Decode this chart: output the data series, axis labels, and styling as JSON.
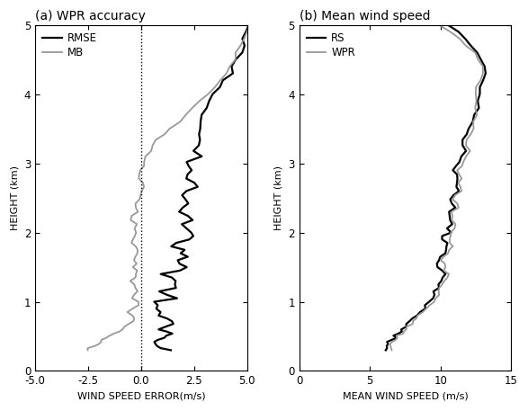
{
  "title_a": "(a) WPR accuracy",
  "title_b": "(b) Mean wind speed",
  "xlabel_a": "WIND SPEED ERROR(m/s)",
  "xlabel_b": "MEAN WIND SPEED (m/s)",
  "ylabel": "HEIGHT (km)",
  "xlim_a": [
    -5.0,
    5.0
  ],
  "xlim_b": [
    0,
    15
  ],
  "ylim": [
    0,
    5
  ],
  "xticks_a": [
    -5.0,
    -2.5,
    0.0,
    2.5,
    5.0
  ],
  "xticks_b": [
    0,
    5,
    10,
    15
  ],
  "yticks": [
    0,
    1,
    2,
    3,
    4,
    5
  ],
  "legend_a": [
    "RMSE",
    "MB"
  ],
  "legend_b": [
    "RS",
    "WPR"
  ],
  "color_rmse": "#000000",
  "color_mb": "#999999",
  "color_rs": "#000000",
  "color_wpr": "#999999",
  "lw_rmse": 1.6,
  "lw_mb": 1.3,
  "lw_rs": 1.6,
  "lw_wpr": 1.3,
  "bg_color": "#ffffff",
  "title_fontsize": 10,
  "label_fontsize": 8,
  "tick_fontsize": 8.5
}
